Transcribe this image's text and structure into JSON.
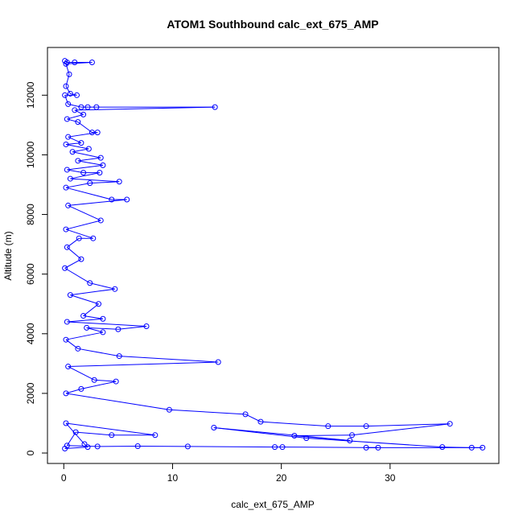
{
  "chart_data": {
    "type": "line",
    "title": "ATOM1 Southbound calc_ext_675_AMP",
    "xlabel": "calc_ext_675_AMP",
    "ylabel": "Altitude (m)",
    "xlim": [
      -1.5,
      40.0
    ],
    "ylim": [
      -350,
      13600
    ],
    "x_ticks": [
      0,
      10,
      20,
      30
    ],
    "y_ticks": [
      0,
      2000,
      4000,
      6000,
      8000,
      10000,
      12000
    ],
    "grid": false,
    "legend": "none",
    "series_color": "#0000ff",
    "marker": "open-circle",
    "series": [
      {
        "points": [
          [
            0.1,
            13150
          ],
          [
            0.3,
            13100
          ],
          [
            1.0,
            13100
          ],
          [
            2.6,
            13100
          ],
          [
            0.2,
            13050
          ],
          [
            0.5,
            12700
          ],
          [
            0.2,
            12300
          ],
          [
            0.6,
            12050
          ],
          [
            1.2,
            12000
          ],
          [
            0.1,
            12000
          ],
          [
            0.4,
            11700
          ],
          [
            1.6,
            11600
          ],
          [
            2.2,
            11600
          ],
          [
            3.0,
            11600
          ],
          [
            13.9,
            11600
          ],
          [
            1.0,
            11500
          ],
          [
            1.8,
            11350
          ],
          [
            0.3,
            11200
          ],
          [
            1.3,
            11100
          ],
          [
            2.6,
            10750
          ],
          [
            3.1,
            10750
          ],
          [
            0.4,
            10600
          ],
          [
            1.6,
            10400
          ],
          [
            0.2,
            10350
          ],
          [
            2.3,
            10200
          ],
          [
            0.8,
            10100
          ],
          [
            3.4,
            9900
          ],
          [
            1.3,
            9800
          ],
          [
            3.6,
            9650
          ],
          [
            0.3,
            9500
          ],
          [
            1.8,
            9400
          ],
          [
            3.3,
            9400
          ],
          [
            0.6,
            9200
          ],
          [
            5.1,
            9100
          ],
          [
            2.4,
            9050
          ],
          [
            0.2,
            8900
          ],
          [
            4.4,
            8500
          ],
          [
            5.8,
            8500
          ],
          [
            0.4,
            8300
          ],
          [
            3.4,
            7800
          ],
          [
            0.2,
            7500
          ],
          [
            2.7,
            7200
          ],
          [
            1.4,
            7200
          ],
          [
            0.3,
            6900
          ],
          [
            1.6,
            6500
          ],
          [
            0.1,
            6200
          ],
          [
            2.4,
            5700
          ],
          [
            4.7,
            5500
          ],
          [
            0.6,
            5300
          ],
          [
            3.2,
            5000
          ],
          [
            1.8,
            4600
          ],
          [
            3.6,
            4500
          ],
          [
            0.3,
            4400
          ],
          [
            7.6,
            4250
          ],
          [
            5.0,
            4150
          ],
          [
            2.1,
            4200
          ],
          [
            3.6,
            4050
          ],
          [
            0.2,
            3800
          ],
          [
            1.3,
            3500
          ],
          [
            5.1,
            3250
          ],
          [
            14.2,
            3050
          ],
          [
            0.4,
            2900
          ],
          [
            2.8,
            2450
          ],
          [
            4.8,
            2400
          ],
          [
            1.6,
            2150
          ],
          [
            0.2,
            2000
          ],
          [
            9.7,
            1450
          ],
          [
            16.7,
            1300
          ],
          [
            18.1,
            1050
          ],
          [
            24.3,
            900
          ],
          [
            27.8,
            900
          ],
          [
            35.5,
            980
          ],
          [
            26.5,
            600
          ],
          [
            21.2,
            580
          ],
          [
            26.3,
            420
          ],
          [
            13.8,
            850
          ],
          [
            22.3,
            500
          ],
          [
            34.8,
            200
          ],
          [
            37.5,
            180
          ],
          [
            38.5,
            180
          ],
          [
            27.8,
            180
          ],
          [
            28.9,
            180
          ],
          [
            20.1,
            200
          ],
          [
            19.4,
            200
          ],
          [
            11.4,
            220
          ],
          [
            6.8,
            230
          ],
          [
            3.1,
            220
          ],
          [
            0.3,
            250
          ],
          [
            1.1,
            700
          ],
          [
            4.4,
            600
          ],
          [
            8.4,
            600
          ],
          [
            0.2,
            1000
          ],
          [
            1.9,
            300
          ],
          [
            2.2,
            200
          ],
          [
            0.1,
            150
          ]
        ]
      }
    ]
  }
}
